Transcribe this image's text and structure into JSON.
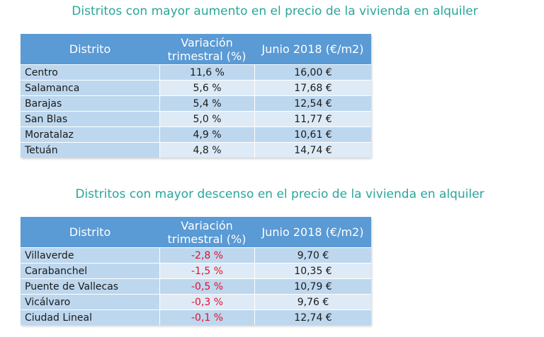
{
  "increase": {
    "title": "Distritos con mayor aumento en el precio de la vivienda en alquiler",
    "headers": {
      "district": "Distrito",
      "variation": "Variación trimestral (%)",
      "price": "Junio 2018 (€/m2)"
    },
    "rows": [
      {
        "district": "Centro",
        "variation": "11,6 %",
        "price": "16,00 €"
      },
      {
        "district": "Salamanca",
        "variation": "5,6 %",
        "price": "17,68 €"
      },
      {
        "district": "Barajas",
        "variation": "5,4 %",
        "price": "12,54 €"
      },
      {
        "district": "San Blas",
        "variation": "5,0 %",
        "price": "11,77 €"
      },
      {
        "district": "Moratalaz",
        "variation": "4,9 %",
        "price": "10,61 €"
      },
      {
        "district": "Tetuán",
        "variation": "4,8 %",
        "price": "14,74 €"
      }
    ]
  },
  "decrease": {
    "title": "Distritos con mayor descenso en el precio de la vivienda en alquiler",
    "headers": {
      "district": "Distrito",
      "variation": "Variación trimestral (%)",
      "price": "Junio 2018 (€/m2)"
    },
    "rows": [
      {
        "district": "Villaverde",
        "variation": "-2,8 %",
        "price": "9,70 €"
      },
      {
        "district": "Carabanchel",
        "variation": "-1,5 %",
        "price": "10,35 €"
      },
      {
        "district": "Puente de Vallecas",
        "variation": "-0,5 %",
        "price": "10,79 €"
      },
      {
        "district": "Vicálvaro",
        "variation": "-0,3 %",
        "price": "9,76 €"
      },
      {
        "district": "Ciudad Lineal",
        "variation": "-0,1 %",
        "price": "12,74 €"
      }
    ]
  },
  "colors": {
    "title": "#2aa59a",
    "header_bg": "#5a9ad5",
    "row_dark": "#bdd7ee",
    "row_light": "#deebf7",
    "negative": "#e0102b"
  }
}
